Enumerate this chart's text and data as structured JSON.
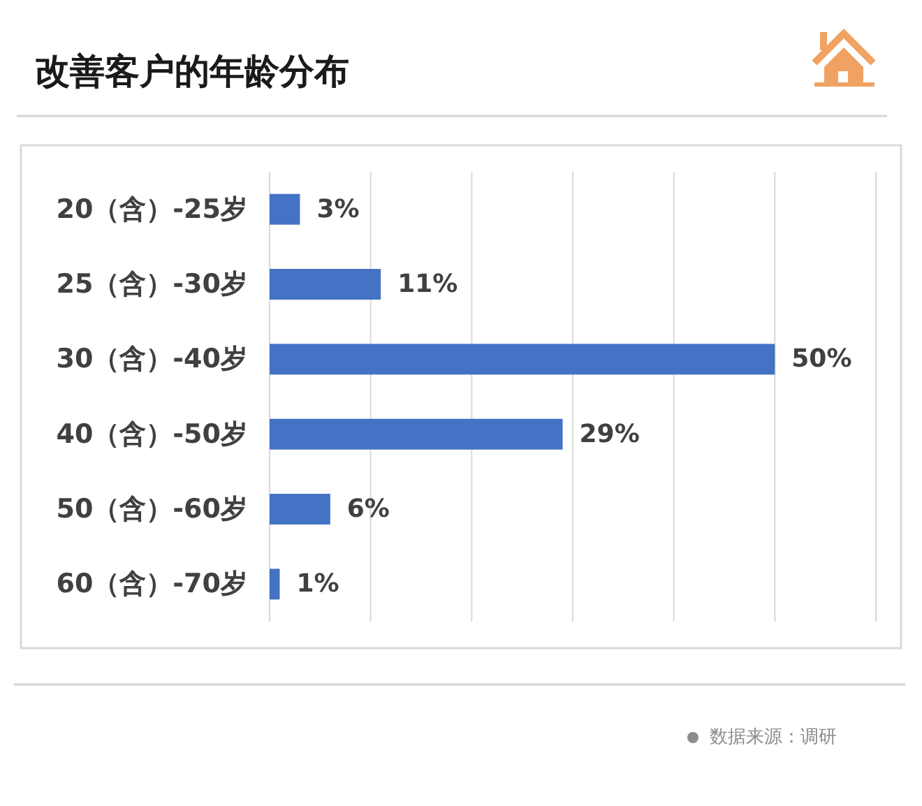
{
  "chart_data": {
    "type": "bar",
    "orientation": "horizontal",
    "title": "改善客户的年龄分布",
    "categories": [
      "20（含）-25岁",
      "25（含）-30岁",
      "30（含）-40岁",
      "40（含）-50岁",
      "50（含）-60岁",
      "60（含）-70岁"
    ],
    "values": [
      3,
      11,
      50,
      29,
      6,
      1
    ],
    "color": "#4472c4",
    "value_labels": [
      "3%",
      "11%",
      "50%",
      "29%",
      "6%",
      "1%"
    ],
    "xlim": [
      0,
      60
    ],
    "xticks": [
      {
        "value": 0,
        "label": null
      },
      {
        "value": 10,
        "label": null
      },
      {
        "value": 20,
        "label": null
      },
      {
        "value": 30,
        "label": null
      },
      {
        "value": 40,
        "label": null
      },
      {
        "value": 50,
        "label": null
      },
      {
        "value": 60,
        "label": null
      }
    ],
    "grid": "x",
    "tick_labels": "y",
    "annotations": [
      "数据来源：调研"
    ]
  }
}
